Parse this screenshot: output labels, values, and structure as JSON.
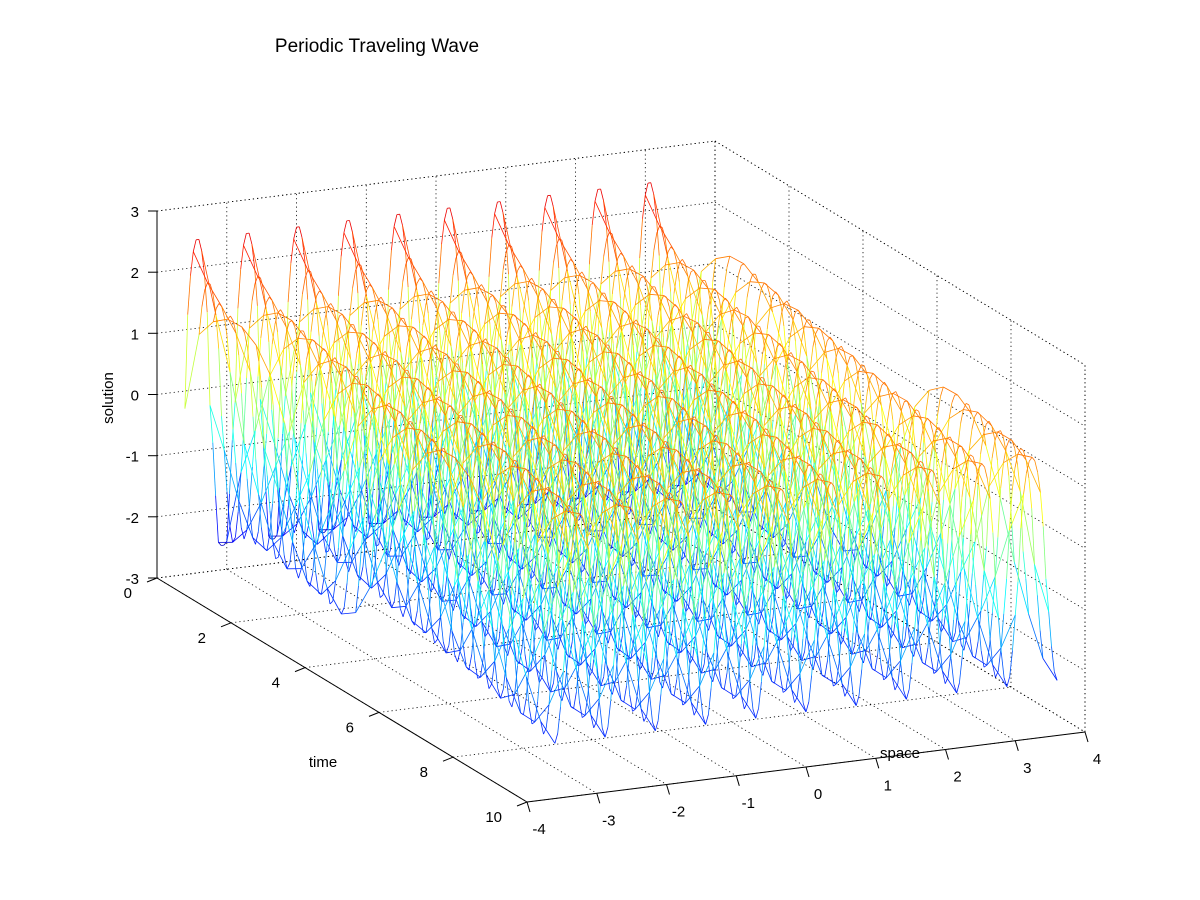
{
  "chart_data": {
    "type": "mesh3d",
    "title": "Periodic Traveling Wave",
    "xlabel": "space",
    "ylabel": "time",
    "zlabel": "solution",
    "xlim": [
      -4,
      4
    ],
    "ylim": [
      0,
      10
    ],
    "zlim": [
      -3,
      3
    ],
    "x_ticks": [
      "-4",
      "-3",
      "-2",
      "-1",
      "0",
      "1",
      "2",
      "3",
      "4"
    ],
    "y_ticks": [
      "0",
      "2",
      "4",
      "6",
      "8",
      "10"
    ],
    "z_ticks": [
      "-3",
      "-2",
      "-1",
      "0",
      "1",
      "2",
      "3"
    ],
    "grid": true,
    "colormap": "jet",
    "x_range": [
      -3.6,
      3.6
    ],
    "t_range": [
      0,
      10
    ],
    "wave": {
      "peak_spacing_x": 0.72,
      "amplitude_initial": 2.4,
      "amplitude_later": 1.85,
      "min_value": -2.6
    }
  }
}
